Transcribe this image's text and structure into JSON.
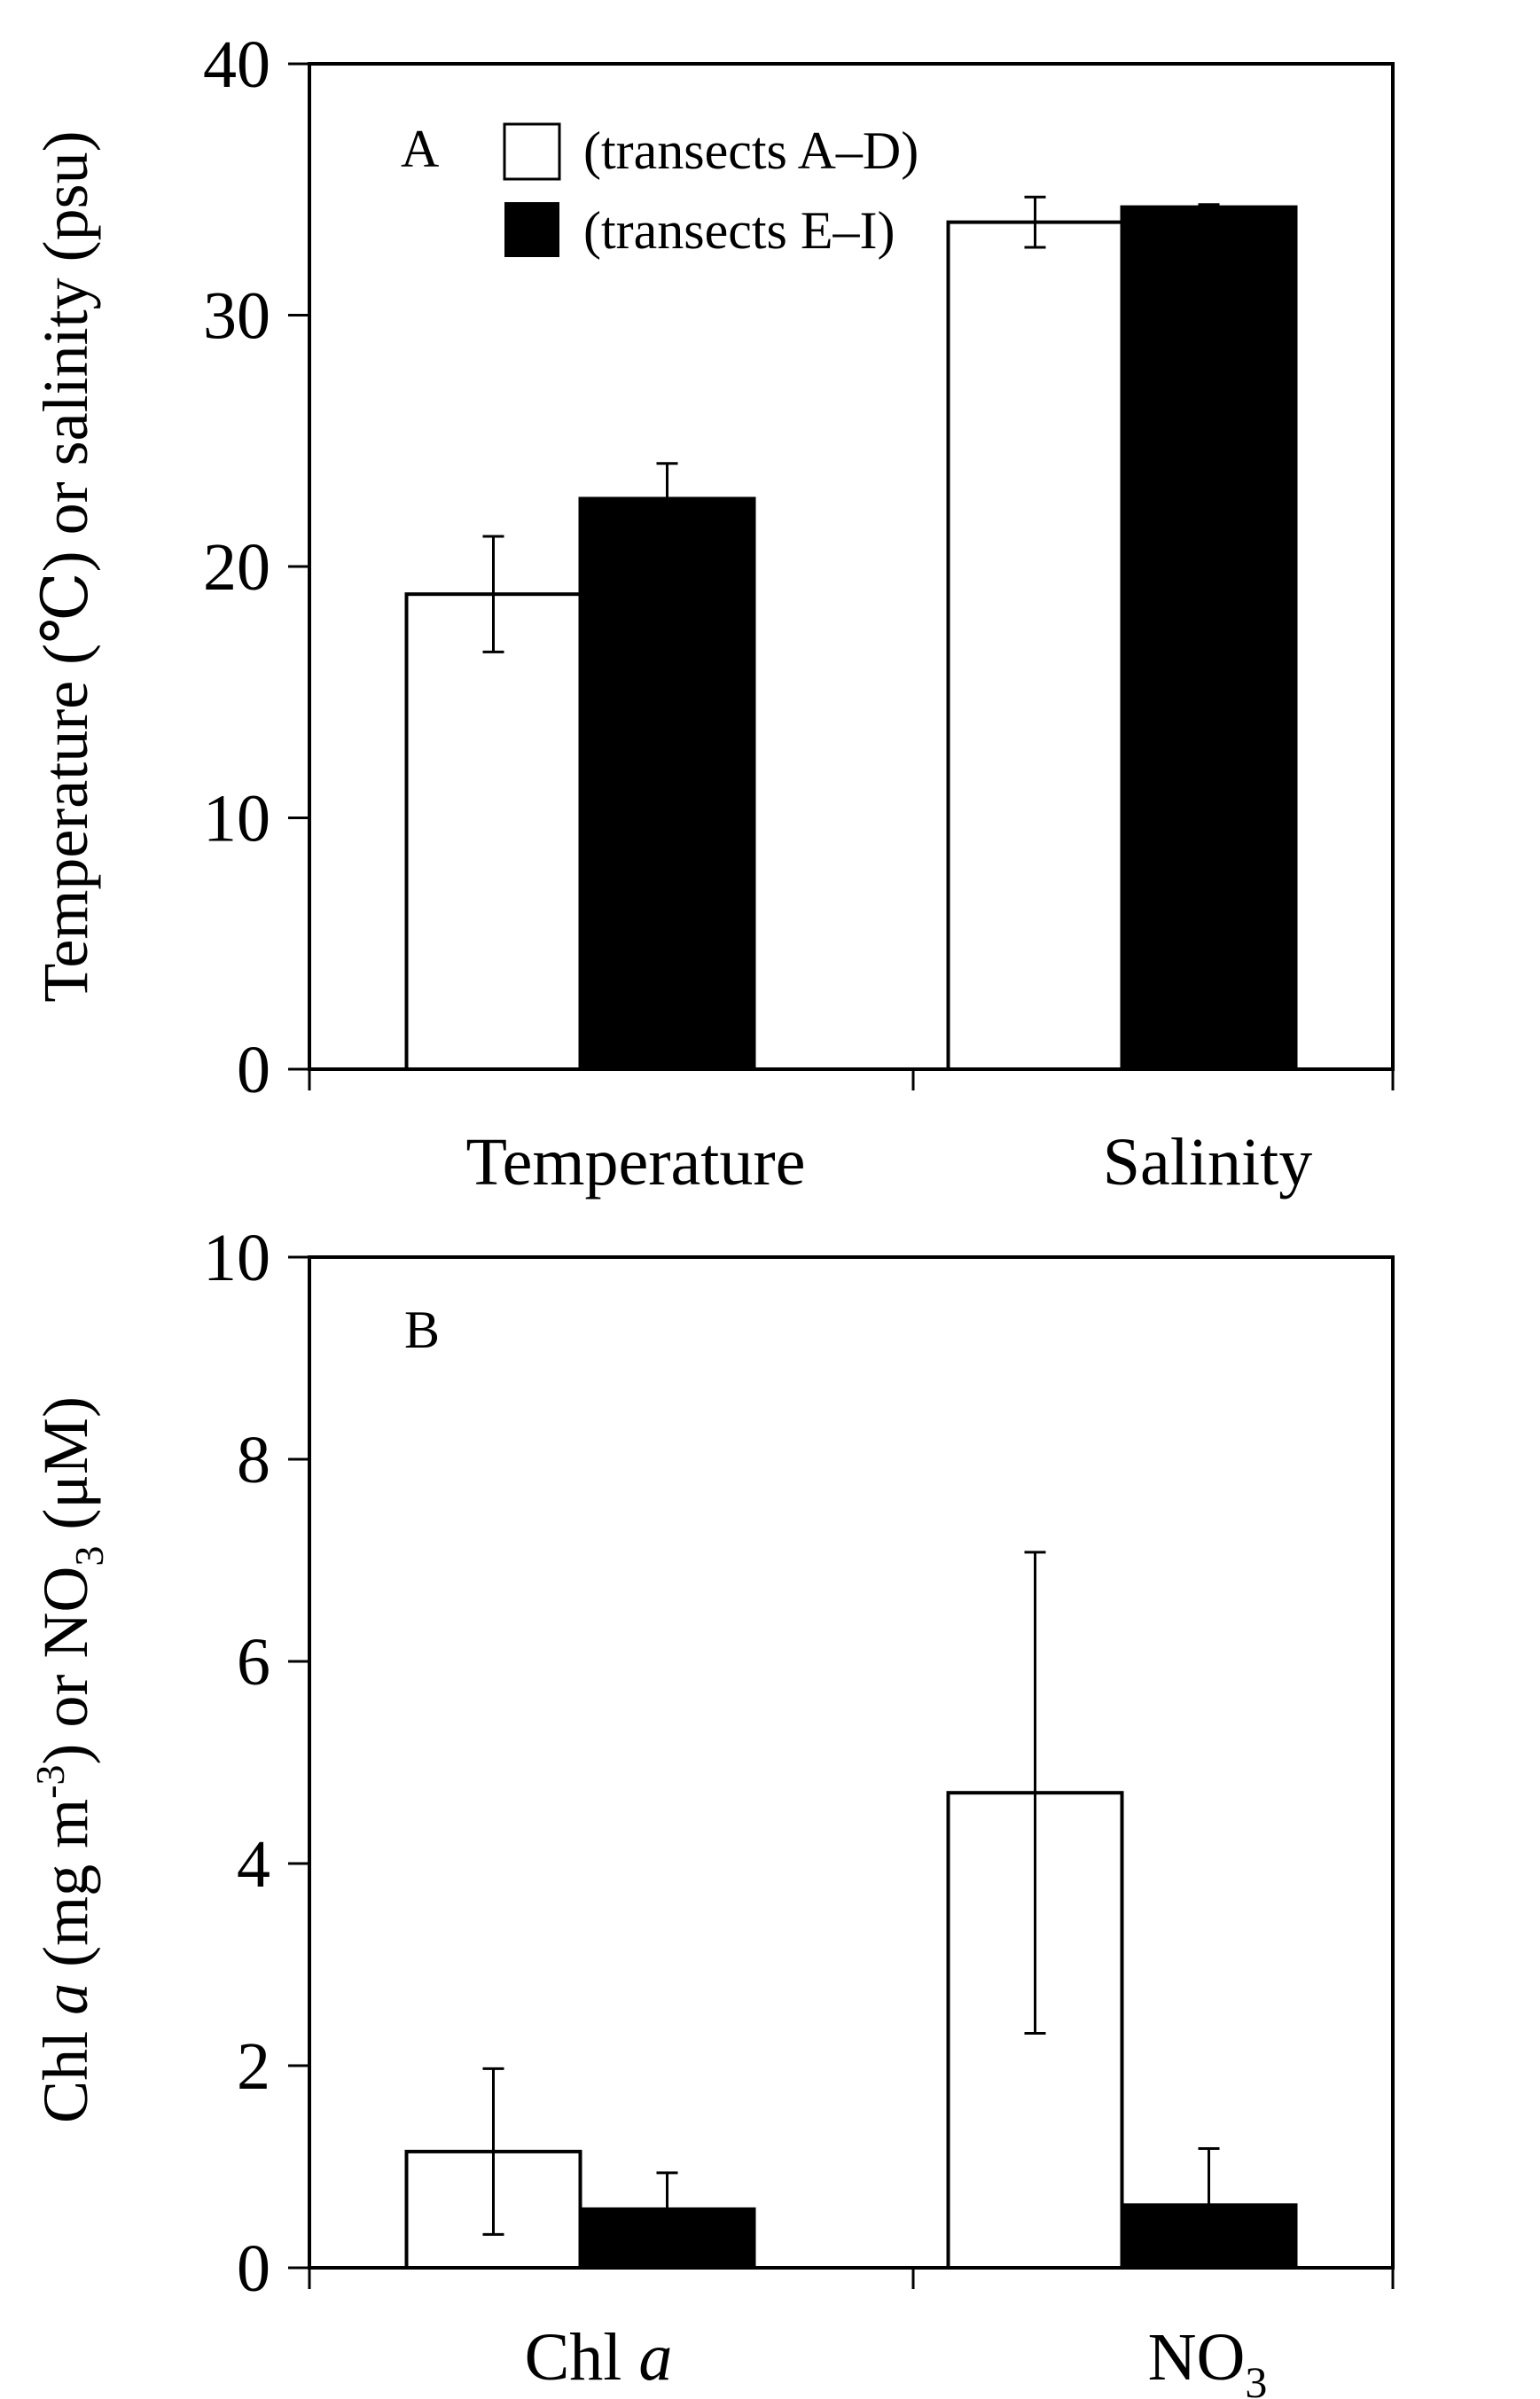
{
  "chart_data": [
    {
      "type": "bar",
      "panel": "A",
      "categories": [
        "Temperature",
        "Salinity"
      ],
      "ylabel": "Temperature (℃) or salinity (psu)",
      "ylim": [
        0,
        40
      ],
      "yticks": [
        0,
        10,
        20,
        30,
        40
      ],
      "legend": {
        "position": "top-left"
      },
      "series": [
        {
          "name": "(transects A–D)",
          "color": "#ffffff",
          "values": [
            18.9,
            33.7
          ],
          "errors": [
            2.3,
            1.0
          ]
        },
        {
          "name": "(transects E–I)",
          "color": "#000000",
          "values": [
            22.7,
            34.3
          ],
          "errors": [
            1.4,
            0.1
          ]
        }
      ]
    },
    {
      "type": "bar",
      "panel": "B",
      "categories": [
        {
          "main": "Chl ",
          "italic": "a"
        },
        {
          "main": "NO",
          "sub": "3"
        }
      ],
      "ylabel": {
        "part1": "Chl ",
        "italic": "a",
        "part2": " (mg m",
        "sup": "-3",
        "part3": ") or NO",
        "sub": "3",
        "part4": " (μM)"
      },
      "ylim": [
        0,
        10
      ],
      "yticks": [
        0,
        2,
        4,
        6,
        8,
        10
      ],
      "series": [
        {
          "name": "(transects A–D)",
          "color": "#ffffff",
          "values": [
            1.15,
            4.7
          ],
          "errors": [
            0.82,
            2.38
          ]
        },
        {
          "name": "(transects E–I)",
          "color": "#000000",
          "values": [
            0.58,
            0.62
          ],
          "errors": [
            0.36,
            0.56
          ]
        }
      ]
    }
  ]
}
